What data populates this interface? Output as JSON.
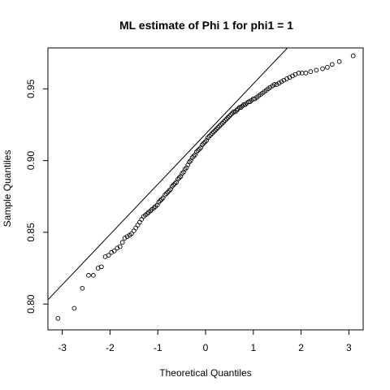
{
  "chart_data": {
    "type": "scatter",
    "title": "ML estimate of Phi 1 for phi1 = 1",
    "xlabel": "Theoretical Quantiles",
    "ylabel": "Sample Quantiles",
    "xlim": [
      -3.3,
      3.3
    ],
    "ylim": [
      0.782,
      0.9785
    ],
    "x_ticks": [
      -3,
      -2,
      -1,
      0,
      1,
      2,
      3
    ],
    "x_tick_labels": [
      "-3",
      "-2",
      "-1",
      "0",
      "1",
      "2",
      "3"
    ],
    "y_ticks": [
      0.8,
      0.85,
      0.9,
      0.95
    ],
    "y_tick_labels": [
      "0.80",
      "0.85",
      "0.90",
      "0.95"
    ],
    "grid": false,
    "legend": "none",
    "point_style": "open-circle",
    "colors": {
      "points": "#000000",
      "line": "#000000",
      "background": "#ffffff"
    },
    "reference_line": {
      "type": "qqline",
      "intercept": 0.9185,
      "slope": 0.035
    },
    "series": [
      {
        "points": [
          [
            -3.09,
            0.79
          ],
          [
            -2.75,
            0.797
          ],
          [
            -2.58,
            0.811
          ],
          [
            -2.45,
            0.82
          ],
          [
            -2.35,
            0.82
          ],
          [
            -2.25,
            0.825
          ],
          [
            -2.18,
            0.826
          ],
          [
            -2.1,
            0.833
          ],
          [
            -2.03,
            0.834
          ],
          [
            -1.97,
            0.836
          ],
          [
            -1.91,
            0.837
          ],
          [
            -1.85,
            0.839
          ],
          [
            -1.79,
            0.84
          ],
          [
            -1.74,
            0.843
          ],
          [
            -1.69,
            0.846
          ],
          [
            -1.64,
            0.847
          ],
          [
            -1.59,
            0.848
          ],
          [
            -1.55,
            0.849
          ],
          [
            -1.5,
            0.851
          ],
          [
            -1.46,
            0.853
          ],
          [
            -1.42,
            0.855
          ],
          [
            -1.38,
            0.857
          ],
          [
            -1.34,
            0.859
          ],
          [
            -1.3,
            0.861
          ],
          [
            -1.26,
            0.862
          ],
          [
            -1.22,
            0.863
          ],
          [
            -1.19,
            0.864
          ],
          [
            -1.15,
            0.865
          ],
          [
            -1.12,
            0.866
          ],
          [
            -1.08,
            0.867
          ],
          [
            -1.05,
            0.868
          ],
          [
            -1.01,
            0.869
          ],
          [
            -0.98,
            0.871
          ],
          [
            -0.95,
            0.872
          ],
          [
            -0.92,
            0.873
          ],
          [
            -0.89,
            0.874
          ],
          [
            -0.85,
            0.876
          ],
          [
            -0.82,
            0.877
          ],
          [
            -0.79,
            0.878
          ],
          [
            -0.76,
            0.879
          ],
          [
            -0.73,
            0.88
          ],
          [
            -0.7,
            0.882
          ],
          [
            -0.67,
            0.883
          ],
          [
            -0.64,
            0.884
          ],
          [
            -0.61,
            0.885
          ],
          [
            -0.58,
            0.887
          ],
          [
            -0.55,
            0.888
          ],
          [
            -0.52,
            0.889
          ],
          [
            -0.49,
            0.891
          ],
          [
            -0.46,
            0.892
          ],
          [
            -0.43,
            0.894
          ],
          [
            -0.4,
            0.895
          ],
          [
            -0.37,
            0.897
          ],
          [
            -0.34,
            0.899
          ],
          [
            -0.31,
            0.9
          ],
          [
            -0.28,
            0.902
          ],
          [
            -0.25,
            0.903
          ],
          [
            -0.22,
            0.904
          ],
          [
            -0.19,
            0.906
          ],
          [
            -0.16,
            0.907
          ],
          [
            -0.13,
            0.908
          ],
          [
            -0.1,
            0.909
          ],
          [
            -0.07,
            0.911
          ],
          [
            -0.04,
            0.912
          ],
          [
            -0.01,
            0.913
          ],
          [
            0.02,
            0.914
          ],
          [
            0.05,
            0.916
          ],
          [
            0.08,
            0.917
          ],
          [
            0.11,
            0.918
          ],
          [
            0.14,
            0.919
          ],
          [
            0.17,
            0.92
          ],
          [
            0.2,
            0.921
          ],
          [
            0.23,
            0.922
          ],
          [
            0.26,
            0.923
          ],
          [
            0.29,
            0.924
          ],
          [
            0.32,
            0.925
          ],
          [
            0.35,
            0.926
          ],
          [
            0.38,
            0.927
          ],
          [
            0.41,
            0.928
          ],
          [
            0.44,
            0.929
          ],
          [
            0.47,
            0.93
          ],
          [
            0.5,
            0.931
          ],
          [
            0.53,
            0.932
          ],
          [
            0.56,
            0.933
          ],
          [
            0.59,
            0.934
          ],
          [
            0.62,
            0.934
          ],
          [
            0.65,
            0.935
          ],
          [
            0.68,
            0.936
          ],
          [
            0.71,
            0.937
          ],
          [
            0.74,
            0.937
          ],
          [
            0.77,
            0.938
          ],
          [
            0.8,
            0.939
          ],
          [
            0.83,
            0.939
          ],
          [
            0.86,
            0.94
          ],
          [
            0.9,
            0.941
          ],
          [
            0.93,
            0.941
          ],
          [
            0.96,
            0.942
          ],
          [
            1.0,
            0.943
          ],
          [
            1.03,
            0.943
          ],
          [
            1.07,
            0.944
          ],
          [
            1.11,
            0.945
          ],
          [
            1.15,
            0.946
          ],
          [
            1.19,
            0.947
          ],
          [
            1.23,
            0.948
          ],
          [
            1.27,
            0.949
          ],
          [
            1.31,
            0.95
          ],
          [
            1.35,
            0.951
          ],
          [
            1.4,
            0.952
          ],
          [
            1.44,
            0.953
          ],
          [
            1.49,
            0.953
          ],
          [
            1.54,
            0.954
          ],
          [
            1.59,
            0.955
          ],
          [
            1.64,
            0.956
          ],
          [
            1.7,
            0.957
          ],
          [
            1.76,
            0.958
          ],
          [
            1.82,
            0.959
          ],
          [
            1.88,
            0.96
          ],
          [
            1.95,
            0.961
          ],
          [
            2.02,
            0.961
          ],
          [
            2.1,
            0.961
          ],
          [
            2.2,
            0.962
          ],
          [
            2.32,
            0.963
          ],
          [
            2.45,
            0.964
          ],
          [
            2.55,
            0.965
          ],
          [
            2.65,
            0.967
          ],
          [
            2.8,
            0.969
          ],
          [
            3.09,
            0.973
          ]
        ]
      }
    ]
  }
}
